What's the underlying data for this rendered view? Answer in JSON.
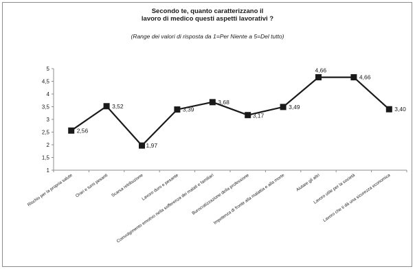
{
  "chart_data": {
    "type": "line",
    "title_line1": "Secondo te, quanto caratterizzano il",
    "title_line2": "lavoro di medico questi aspetti lavorativi ?",
    "subtitle": "(Range dei valori di risposta da 1=Per Niente a 5=Del tutto)",
    "ylim": [
      1,
      5
    ],
    "yticks": [
      "1",
      "1,5",
      "2",
      "2,5",
      "3",
      "3,5",
      "4",
      "4,5",
      "5"
    ],
    "grid": false,
    "line_color": "#1a1a1a",
    "categories": [
      "Rischio per la propria salute",
      "Orari e turni pesanti",
      "Scarsa retribuzione",
      "Lavoro duro e pesante",
      "Coinvolgimento emotivo nella sofferenza dei malati e familiari",
      "Burocratizzazione della professione",
      "Impotenza di fronte alla malattia e alla morte",
      "Aiutare gli altri",
      "Lavoro utile per la società",
      "Lavoro che ti dà una sicurezza economica"
    ],
    "values": [
      2.56,
      3.52,
      1.97,
      3.39,
      3.68,
      3.17,
      3.49,
      4.66,
      4.66,
      3.4
    ],
    "labels": [
      "2,56",
      "3,52",
      "1,97",
      "3,39",
      "3,68",
      "3,17",
      "3,49",
      "4,66",
      "4,66",
      "3,40"
    ]
  }
}
